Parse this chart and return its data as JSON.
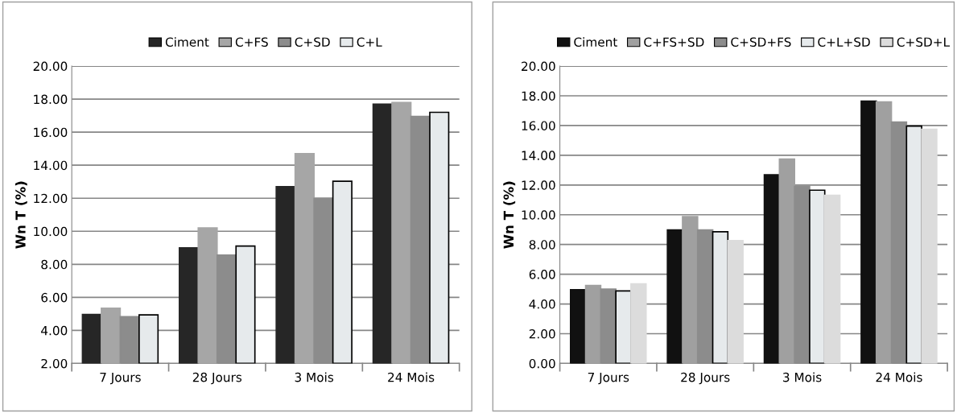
{
  "chart_data": [
    {
      "type": "bar",
      "ylabel": "Wn T (%)",
      "categories": [
        "7 Jours",
        "28 Jours",
        "3 Mois",
        "24 Mois"
      ],
      "series": [
        {
          "name": "Ciment",
          "color": "#262626",
          "values": [
            4.97,
            9.0,
            12.7,
            17.7
          ]
        },
        {
          "name": "C+FS",
          "color": "#a6a6a6",
          "values": [
            5.34,
            10.2,
            14.7,
            17.8
          ]
        },
        {
          "name": "C+SD",
          "color": "#8c8c8c",
          "values": [
            4.83,
            8.56,
            12.0,
            16.96
          ]
        },
        {
          "name": "C+L",
          "color": "#e6eaec",
          "values": [
            4.94,
            9.11,
            13.03,
            17.2
          ]
        }
      ],
      "ylim": [
        2,
        20
      ],
      "yticks": [
        {
          "value": 2,
          "label": "2.00"
        },
        {
          "value": 4,
          "label": "4.00"
        },
        {
          "value": 6,
          "label": "6.00"
        },
        {
          "value": 8,
          "label": "8.00"
        },
        {
          "value": 10,
          "label": "10.00"
        },
        {
          "value": 12,
          "label": "12.00"
        },
        {
          "value": 14,
          "label": "14.00"
        },
        {
          "value": 16,
          "label": "16.00"
        },
        {
          "value": 18,
          "label": "18.00"
        },
        {
          "value": 20,
          "label": "20.00"
        }
      ],
      "grid": "y",
      "legend": "top"
    },
    {
      "type": "bar",
      "ylabel": "Wn T (%)",
      "categories": [
        "7 Jours",
        "28 Jours",
        "3 Mois",
        "24 Mois"
      ],
      "series": [
        {
          "name": "Ciment",
          "color": "#111111",
          "values": [
            4.96,
            8.98,
            12.69,
            17.65
          ]
        },
        {
          "name": "C+FS+SD",
          "color": "#a0a0a0",
          "values": [
            5.24,
            9.88,
            13.75,
            17.59
          ]
        },
        {
          "name": "C+SD+FS",
          "color": "#8c8c8c",
          "values": [
            5.0,
            8.98,
            11.92,
            16.24
          ]
        },
        {
          "name": "C+L+SD",
          "color": "#e6eaec",
          "values": [
            4.88,
            8.86,
            11.65,
            15.96
          ]
        },
        {
          "name": "C+SD+L",
          "color": "#dcdcdc",
          "values": [
            5.35,
            8.27,
            11.31,
            15.75
          ]
        }
      ],
      "ylim": [
        0,
        20
      ],
      "yticks": [
        {
          "value": 0,
          "label": "0.00"
        },
        {
          "value": 2,
          "label": "2.00"
        },
        {
          "value": 4,
          "label": "4.00"
        },
        {
          "value": 6,
          "label": "6.00"
        },
        {
          "value": 8,
          "label": "8.00"
        },
        {
          "value": 10,
          "label": "10.00"
        },
        {
          "value": 12,
          "label": "12.00"
        },
        {
          "value": 14,
          "label": "14.00"
        },
        {
          "value": 16,
          "label": "16.00"
        },
        {
          "value": 18,
          "label": "18.00"
        },
        {
          "value": 20,
          "label": "20.00"
        }
      ],
      "grid": "y",
      "legend": "top"
    }
  ]
}
